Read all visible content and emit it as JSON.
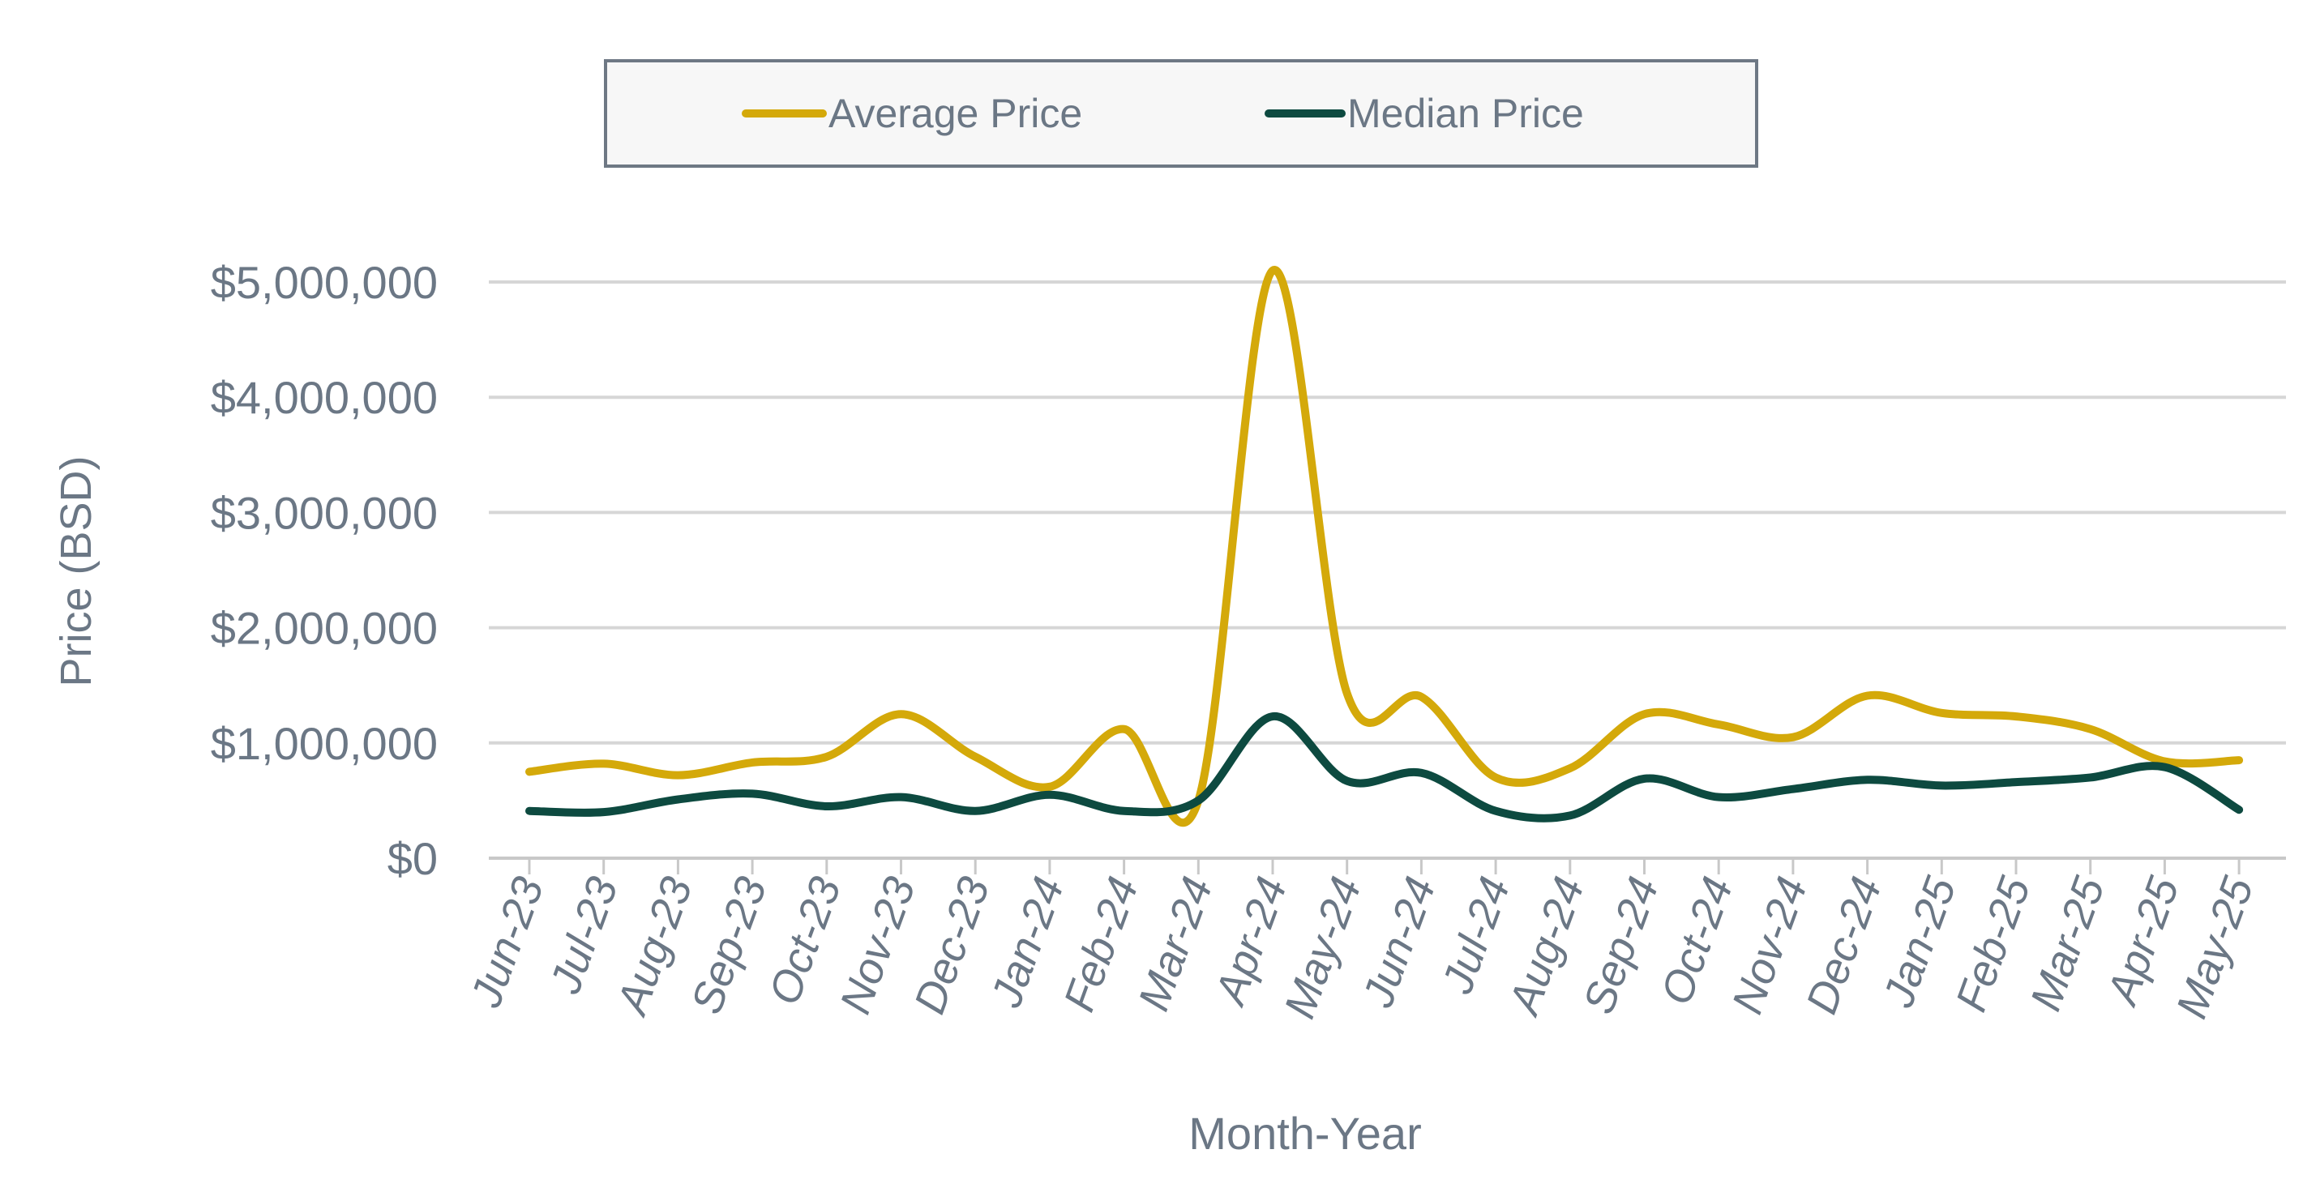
{
  "chart_data": {
    "type": "line",
    "xlabel": "Month-Year",
    "ylabel": "Price (BSD)",
    "ylim": [
      0,
      5000000
    ],
    "yticks": [
      0,
      1000000,
      2000000,
      3000000,
      4000000,
      5000000
    ],
    "ytick_labels": [
      "$0",
      "$1,000,000",
      "$2,000,000",
      "$3,000,000",
      "$4,000,000",
      "$5,000,000"
    ],
    "grid": "horizontal",
    "legend_position": "top-center",
    "categories": [
      "Jun-23",
      "Jul-23",
      "Aug-23",
      "Sep-23",
      "Oct-23",
      "Nov-23",
      "Dec-23",
      "Jan-24",
      "Feb-24",
      "Mar-24",
      "Apr-24",
      "May-24",
      "Jun-24",
      "Jul-24",
      "Aug-24",
      "Sep-24",
      "Oct-24",
      "Nov-24",
      "Dec-24",
      "Jan-25",
      "Feb-25",
      "Mar-25",
      "Apr-25",
      "May-25"
    ],
    "series": [
      {
        "name": "Average Price",
        "color": "#D4A90A",
        "values": [
          750000,
          820000,
          720000,
          830000,
          880000,
          1250000,
          880000,
          620000,
          1120000,
          500000,
          5100000,
          1430000,
          1400000,
          700000,
          780000,
          1250000,
          1160000,
          1050000,
          1410000,
          1260000,
          1230000,
          1120000,
          840000,
          850000
        ]
      },
      {
        "name": "Median Price",
        "color": "#0D4A40",
        "values": [
          410000,
          400000,
          510000,
          560000,
          450000,
          530000,
          410000,
          550000,
          410000,
          500000,
          1230000,
          670000,
          740000,
          410000,
          370000,
          690000,
          530000,
          600000,
          680000,
          630000,
          660000,
          700000,
          790000,
          420000
        ]
      }
    ]
  }
}
